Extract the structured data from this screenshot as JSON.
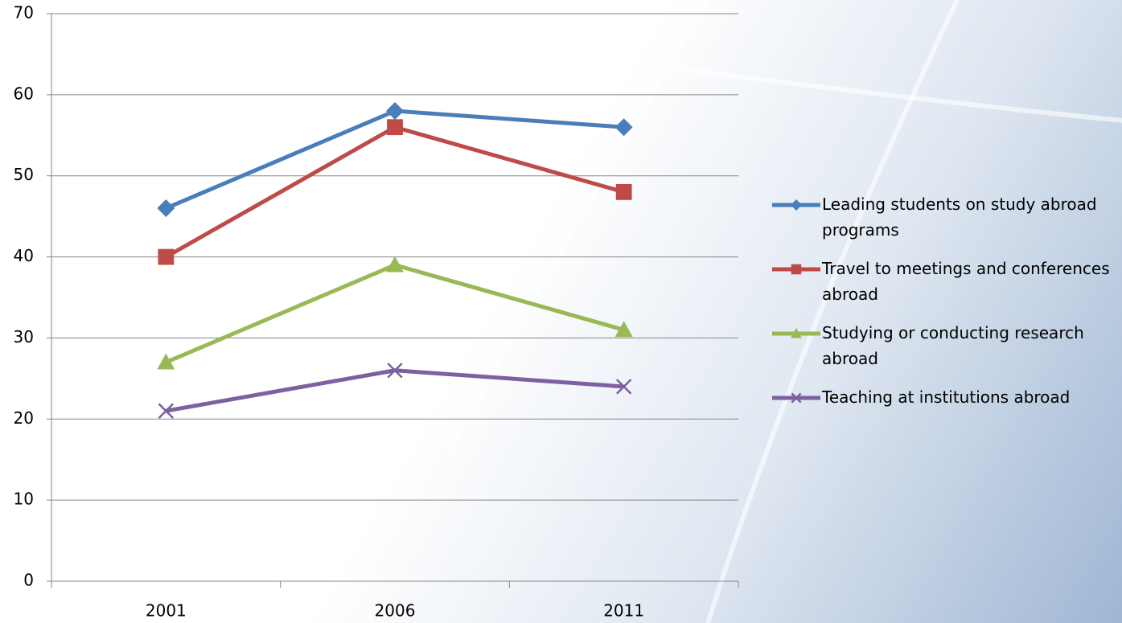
{
  "chart_data": {
    "type": "line",
    "categories": [
      "2001",
      "2006",
      "2011"
    ],
    "series": [
      {
        "name": "Leading students on study abroad programs",
        "color": "#4a7ebb",
        "marker": "diamond",
        "values": [
          46,
          58,
          56
        ]
      },
      {
        "name": "Travel to meetings and conferences abroad",
        "color": "#be4b48",
        "marker": "square",
        "values": [
          40,
          56,
          48
        ]
      },
      {
        "name": "Studying or conducting research abroad",
        "color": "#98b954",
        "marker": "triangle",
        "values": [
          27,
          39,
          31
        ]
      },
      {
        "name": "Teaching at institutions abroad",
        "color": "#7d60a0",
        "marker": "x",
        "values": [
          21,
          26,
          24
        ]
      }
    ],
    "ylim": [
      0,
      70
    ],
    "yticks": [
      0,
      10,
      20,
      30,
      40,
      50,
      60,
      70
    ],
    "grid": true,
    "legend": "right"
  }
}
